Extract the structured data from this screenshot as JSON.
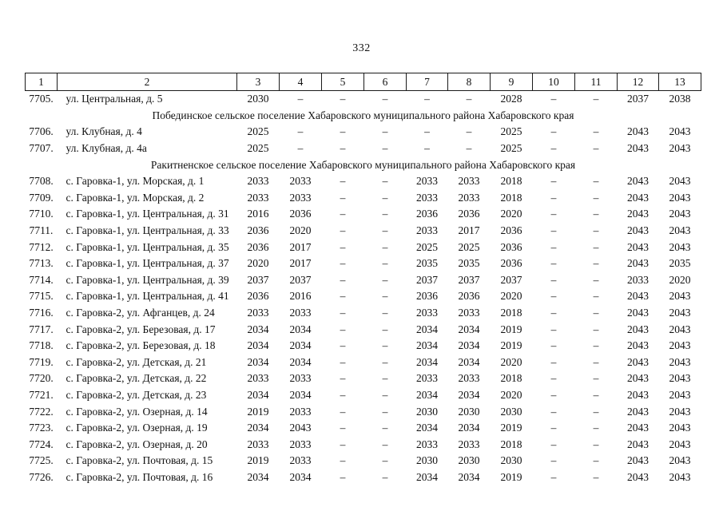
{
  "page_number": "332",
  "table": {
    "column_headers": [
      "1",
      "2",
      "3",
      "4",
      "5",
      "6",
      "7",
      "8",
      "9",
      "10",
      "11",
      "12",
      "13"
    ],
    "rows": [
      {
        "type": "data",
        "num": "7705.",
        "address": "ул. Центральная, д. 5",
        "values": [
          "2030",
          "–",
          "–",
          "–",
          "–",
          "–",
          "2028",
          "–",
          "–",
          "2037",
          "2038"
        ]
      },
      {
        "type": "section",
        "label": "Побединское сельское поселение Хабаровского муниципального района Хабаровского края"
      },
      {
        "type": "data",
        "num": "7706.",
        "address": "ул. Клубная, д. 4",
        "values": [
          "2025",
          "–",
          "–",
          "–",
          "–",
          "–",
          "2025",
          "–",
          "–",
          "2043",
          "2043"
        ]
      },
      {
        "type": "data",
        "num": "7707.",
        "address": "ул. Клубная, д. 4а",
        "values": [
          "2025",
          "–",
          "–",
          "–",
          "–",
          "–",
          "2025",
          "–",
          "–",
          "2043",
          "2043"
        ]
      },
      {
        "type": "section",
        "label": "Ракитненское сельское поселение Хабаровского муниципального района Хабаровского края"
      },
      {
        "type": "data",
        "num": "7708.",
        "address": "с. Гаровка-1, ул. Морская, д. 1",
        "values": [
          "2033",
          "2033",
          "–",
          "–",
          "2033",
          "2033",
          "2018",
          "–",
          "–",
          "2043",
          "2043"
        ]
      },
      {
        "type": "data",
        "num": "7709.",
        "address": "с. Гаровка-1, ул. Морская, д. 2",
        "values": [
          "2033",
          "2033",
          "–",
          "–",
          "2033",
          "2033",
          "2018",
          "–",
          "–",
          "2043",
          "2043"
        ]
      },
      {
        "type": "data",
        "num": "7710.",
        "address": "с. Гаровка-1, ул. Центральная, д. 31",
        "values": [
          "2016",
          "2036",
          "–",
          "–",
          "2036",
          "2036",
          "2020",
          "–",
          "–",
          "2043",
          "2043"
        ]
      },
      {
        "type": "data",
        "num": "7711.",
        "address": "с. Гаровка-1, ул. Центральная, д. 33",
        "values": [
          "2036",
          "2020",
          "–",
          "–",
          "2033",
          "2017",
          "2036",
          "–",
          "–",
          "2043",
          "2043"
        ]
      },
      {
        "type": "data",
        "num": "7712.",
        "address": "с. Гаровка-1, ул. Центральная, д. 35",
        "values": [
          "2036",
          "2017",
          "–",
          "–",
          "2025",
          "2025",
          "2036",
          "–",
          "–",
          "2043",
          "2043"
        ]
      },
      {
        "type": "data",
        "num": "7713.",
        "address": "с. Гаровка-1, ул. Центральная, д. 37",
        "values": [
          "2020",
          "2017",
          "–",
          "–",
          "2035",
          "2035",
          "2036",
          "–",
          "–",
          "2043",
          "2035"
        ]
      },
      {
        "type": "data",
        "num": "7714.",
        "address": "с. Гаровка-1, ул. Центральная, д. 39",
        "values": [
          "2037",
          "2037",
          "–",
          "–",
          "2037",
          "2037",
          "2037",
          "–",
          "–",
          "2033",
          "2020"
        ]
      },
      {
        "type": "data",
        "num": "7715.",
        "address": "с. Гаровка-1, ул. Центральная, д. 41",
        "values": [
          "2036",
          "2016",
          "–",
          "–",
          "2036",
          "2036",
          "2020",
          "–",
          "–",
          "2043",
          "2043"
        ]
      },
      {
        "type": "data",
        "num": "7716.",
        "address": "с. Гаровка-2, ул. Афганцев, д. 24",
        "values": [
          "2033",
          "2033",
          "–",
          "–",
          "2033",
          "2033",
          "2018",
          "–",
          "–",
          "2043",
          "2043"
        ]
      },
      {
        "type": "data",
        "num": "7717.",
        "address": "с. Гаровка-2, ул. Березовая, д. 17",
        "values": [
          "2034",
          "2034",
          "–",
          "–",
          "2034",
          "2034",
          "2019",
          "–",
          "–",
          "2043",
          "2043"
        ]
      },
      {
        "type": "data",
        "num": "7718.",
        "address": "с. Гаровка-2, ул. Березовая, д. 18",
        "values": [
          "2034",
          "2034",
          "–",
          "–",
          "2034",
          "2034",
          "2019",
          "–",
          "–",
          "2043",
          "2043"
        ]
      },
      {
        "type": "data",
        "num": "7719.",
        "address": "с. Гаровка-2, ул. Детская, д. 21",
        "values": [
          "2034",
          "2034",
          "–",
          "–",
          "2034",
          "2034",
          "2020",
          "–",
          "–",
          "2043",
          "2043"
        ]
      },
      {
        "type": "data",
        "num": "7720.",
        "address": "с. Гаровка-2, ул. Детская, д. 22",
        "values": [
          "2033",
          "2033",
          "–",
          "–",
          "2033",
          "2033",
          "2018",
          "–",
          "–",
          "2043",
          "2043"
        ]
      },
      {
        "type": "data",
        "num": "7721.",
        "address": "с. Гаровка-2, ул. Детская, д. 23",
        "values": [
          "2034",
          "2034",
          "–",
          "–",
          "2034",
          "2034",
          "2020",
          "–",
          "–",
          "2043",
          "2043"
        ]
      },
      {
        "type": "data",
        "num": "7722.",
        "address": "с. Гаровка-2, ул. Озерная, д. 14",
        "values": [
          "2019",
          "2033",
          "–",
          "–",
          "2030",
          "2030",
          "2030",
          "–",
          "–",
          "2043",
          "2043"
        ]
      },
      {
        "type": "data",
        "num": "7723.",
        "address": "с. Гаровка-2, ул. Озерная, д. 19",
        "values": [
          "2034",
          "2043",
          "–",
          "–",
          "2034",
          "2034",
          "2019",
          "–",
          "–",
          "2043",
          "2043"
        ]
      },
      {
        "type": "data",
        "num": "7724.",
        "address": "с. Гаровка-2, ул. Озерная, д. 20",
        "values": [
          "2033",
          "2033",
          "–",
          "–",
          "2033",
          "2033",
          "2018",
          "–",
          "–",
          "2043",
          "2043"
        ]
      },
      {
        "type": "data",
        "num": "7725.",
        "address": "с. Гаровка-2, ул. Почтовая, д. 15",
        "values": [
          "2019",
          "2033",
          "–",
          "–",
          "2030",
          "2030",
          "2030",
          "–",
          "–",
          "2043",
          "2043"
        ]
      },
      {
        "type": "data",
        "num": "7726.",
        "address": "с. Гаровка-2, ул. Почтовая, д. 16",
        "values": [
          "2034",
          "2034",
          "–",
          "–",
          "2034",
          "2034",
          "2019",
          "–",
          "–",
          "2043",
          "2043"
        ]
      }
    ]
  }
}
